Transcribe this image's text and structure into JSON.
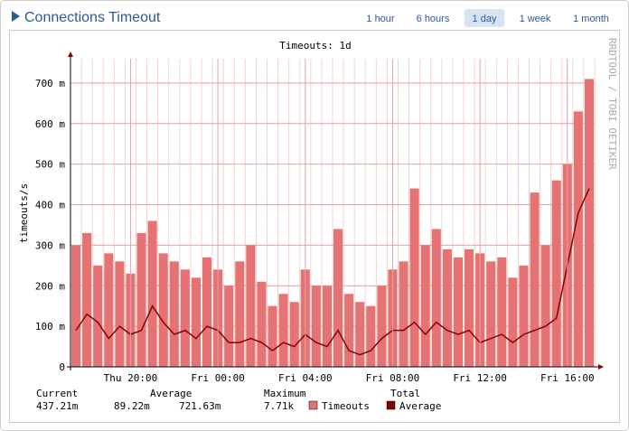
{
  "header": {
    "title": "Connections Timeout",
    "tabs": [
      "1 hour",
      "6 hours",
      "1 day",
      "1 week",
      "1 month"
    ],
    "active_tab": 2
  },
  "chart_data": {
    "type": "bar_line",
    "title": "Timeouts: 1d",
    "y_label": "timeouts/s",
    "watermark": "RRDTOOL / TOBI OETIKER",
    "categories": [
      null,
      null,
      null,
      null,
      null,
      "Thu 20:00",
      null,
      null,
      null,
      null,
      null,
      null,
      null,
      "Fri 00:00",
      null,
      null,
      null,
      null,
      null,
      null,
      null,
      "Fri 04:00",
      null,
      null,
      null,
      null,
      null,
      null,
      null,
      "Fri 08:00",
      null,
      null,
      null,
      null,
      null,
      null,
      null,
      "Fri 12:00",
      null,
      null,
      null,
      null,
      null,
      null,
      null,
      "Fri 16:00",
      null,
      null
    ],
    "series": [
      {
        "name": "Timeouts",
        "color": "#e57373",
        "values": [
          300,
          330,
          250,
          280,
          260,
          230,
          330,
          360,
          280,
          260,
          240,
          220,
          270,
          240,
          200,
          260,
          300,
          210,
          150,
          180,
          160,
          240,
          200,
          200,
          340,
          180,
          160,
          150,
          200,
          240,
          260,
          440,
          300,
          340,
          290,
          270,
          290,
          280,
          260,
          270,
          220,
          250,
          430,
          300,
          460,
          500,
          630,
          710
        ]
      },
      {
        "name": "Average",
        "color": "#8b0000",
        "values": [
          90,
          130,
          110,
          70,
          100,
          80,
          90,
          150,
          110,
          80,
          90,
          70,
          100,
          90,
          60,
          60,
          70,
          60,
          40,
          60,
          50,
          80,
          60,
          50,
          90,
          40,
          30,
          40,
          70,
          90,
          90,
          110,
          80,
          110,
          90,
          80,
          90,
          60,
          70,
          80,
          60,
          80,
          90,
          100,
          120,
          250,
          380,
          440
        ]
      }
    ],
    "ylim": [
      0,
      760
    ],
    "yticks": [
      0,
      {
        "value": 100,
        "label": "100 m"
      },
      {
        "value": 200,
        "label": "200 m"
      },
      {
        "value": 300,
        "label": "300 m"
      },
      {
        "value": 400,
        "label": "400 m"
      },
      {
        "value": 500,
        "label": "500 m"
      },
      {
        "value": 600,
        "label": "600 m"
      },
      {
        "value": 700,
        "label": "700 m"
      }
    ],
    "grid": true
  },
  "legend_table": {
    "headers": [
      "Current",
      "Average",
      "Maximum",
      "Total"
    ],
    "values": [
      "437.21m",
      "89.22m",
      "721.63m",
      "7.71k"
    ]
  }
}
